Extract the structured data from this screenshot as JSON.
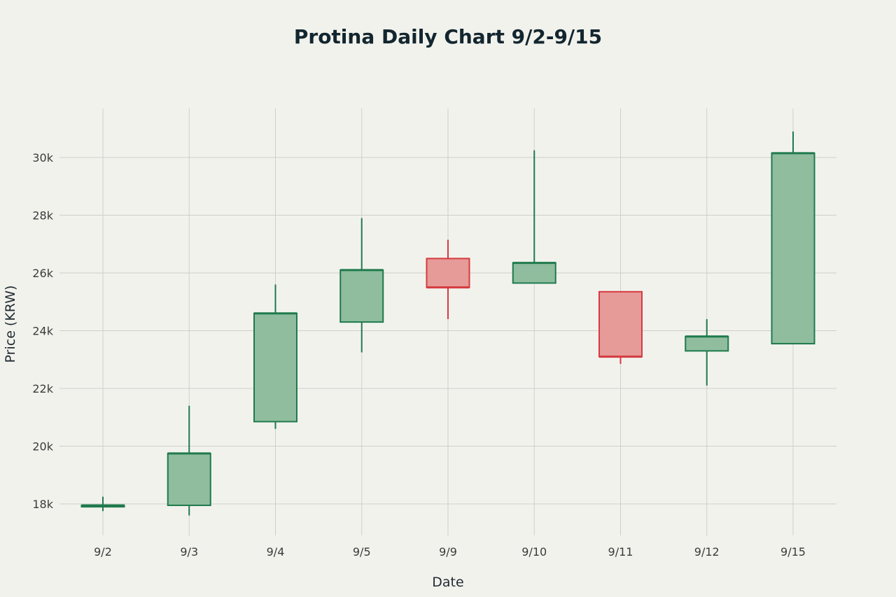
{
  "chart_data": {
    "type": "candlestick",
    "title": "Protina Daily Chart 9/2-9/15",
    "xlabel": "Date",
    "ylabel": "Price (KRW)",
    "categories": [
      "9/2",
      "9/3",
      "9/4",
      "9/5",
      "9/9",
      "9/10",
      "9/11",
      "9/12",
      "9/15"
    ],
    "ohlc": [
      {
        "date": "9/2",
        "open": 17900,
        "high": 18250,
        "low": 17750,
        "close": 17950
      },
      {
        "date": "9/3",
        "open": 17950,
        "high": 21400,
        "low": 17600,
        "close": 19750
      },
      {
        "date": "9/4",
        "open": 20850,
        "high": 25600,
        "low": 20600,
        "close": 24600
      },
      {
        "date": "9/5",
        "open": 24300,
        "high": 27900,
        "low": 23250,
        "close": 26100
      },
      {
        "date": "9/9",
        "open": 26500,
        "high": 27150,
        "low": 24400,
        "close": 25500
      },
      {
        "date": "9/10",
        "open": 25650,
        "high": 30250,
        "low": 25650,
        "close": 26350
      },
      {
        "date": "9/11",
        "open": 25350,
        "high": 25350,
        "low": 22850,
        "close": 23100
      },
      {
        "date": "9/12",
        "open": 23300,
        "high": 24400,
        "low": 22100,
        "close": 23800
      },
      {
        "date": "9/15",
        "open": 23550,
        "high": 30900,
        "low": 23550,
        "close": 30150
      }
    ],
    "yticks": [
      18000,
      20000,
      22000,
      24000,
      26000,
      28000,
      30000
    ],
    "ytick_labels": [
      "18k",
      "20k",
      "22k",
      "24k",
      "26k",
      "28k",
      "30k"
    ],
    "ylim": [
      16900,
      31650
    ],
    "grid": true,
    "colors": {
      "background": "#f2f2ed",
      "increasing_line": "#1f7a4c",
      "increasing_fill": "#8fbd9e",
      "decreasing_line": "#d63a40",
      "decreasing_fill": "#e69b98",
      "grid": "#cfcfca"
    }
  }
}
